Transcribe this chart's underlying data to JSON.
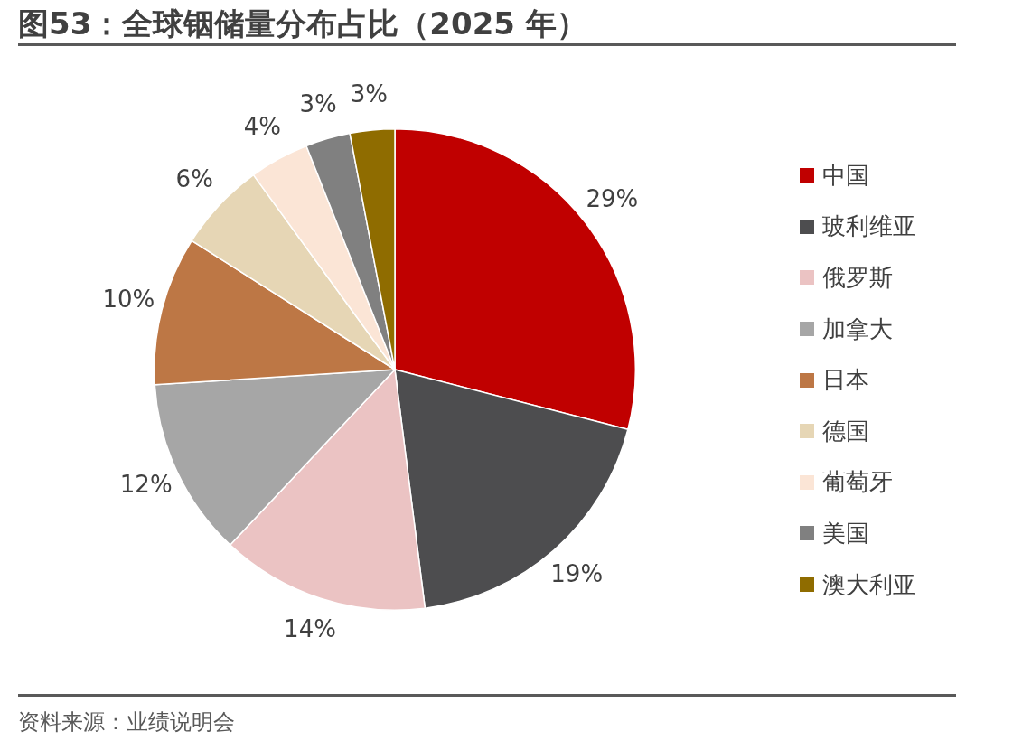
{
  "chart_data": {
    "type": "pie",
    "title": "图53：全球铟储量分布占比（2025 年）",
    "categories": [
      "中国",
      "玻利维亚",
      "俄罗斯",
      "加拿大",
      "日本",
      "德国",
      "葡萄牙",
      "美国",
      "澳大利亚"
    ],
    "values": [
      29,
      19,
      14,
      12,
      10,
      6,
      4,
      3,
      3
    ],
    "value_labels": [
      "29%",
      "19%",
      "14%",
      "12%",
      "10%",
      "6%",
      "4%",
      "3%",
      "3%"
    ],
    "colors": [
      "#c00000",
      "#4d4d4f",
      "#ebc3c3",
      "#a6a6a6",
      "#bd7745",
      "#e6d6b5",
      "#fbe5d6",
      "#808080",
      "#8f6c00"
    ],
    "legend": "right",
    "annotations": [
      "资料来源：业绩说明会"
    ]
  }
}
